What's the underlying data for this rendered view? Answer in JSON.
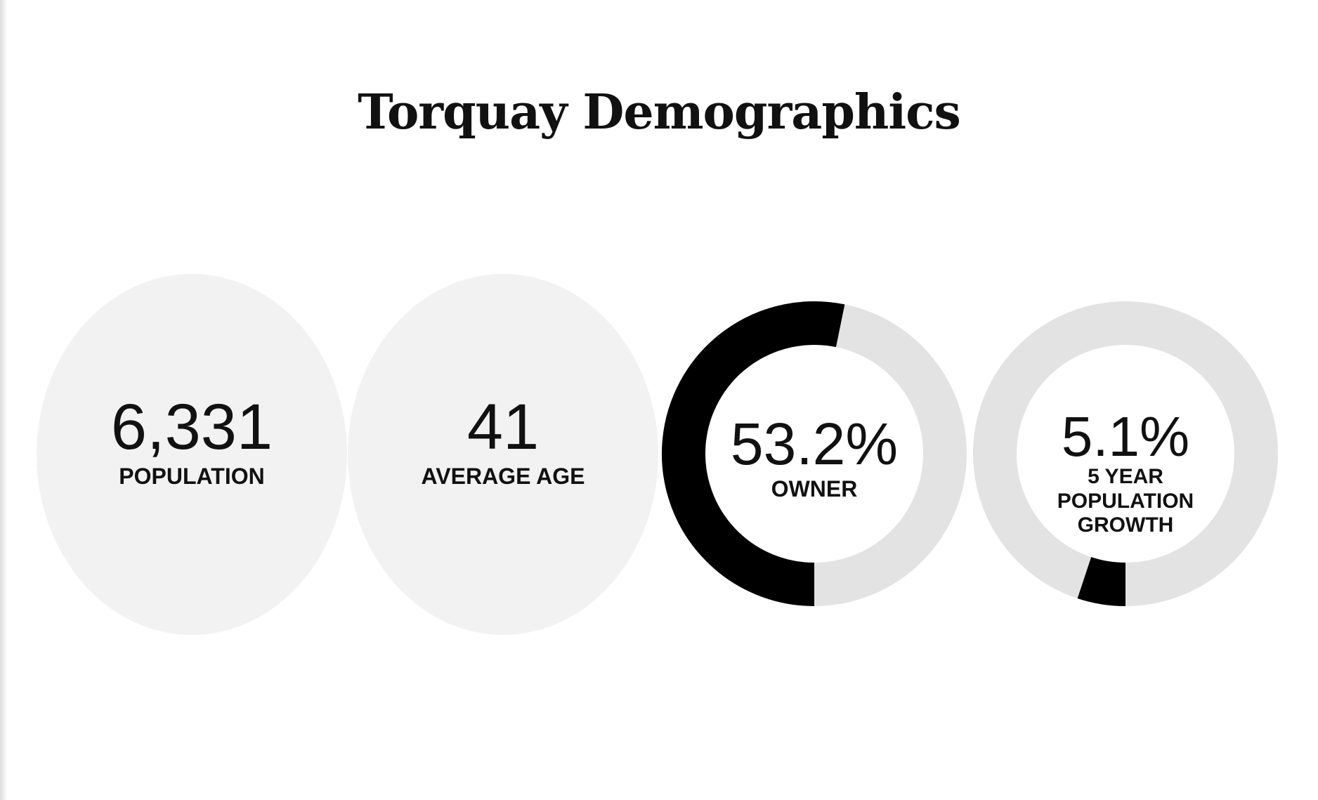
{
  "title": "Torquay Demographics",
  "colors": {
    "oval_fill": "#f2f2f2",
    "ring_track": "#e3e3e3",
    "ring_fill": "#000000",
    "text": "#111111"
  },
  "stats": [
    {
      "value": "6,331",
      "label": "POPULATION"
    },
    {
      "value": "41",
      "label": "AVERAGE AGE"
    }
  ],
  "donuts": [
    {
      "value": "53.2%",
      "label": "OWNER",
      "percent": 53.2
    },
    {
      "value": "5.1%",
      "label": "5 YEAR POPULATION GROWTH",
      "percent": 5.1
    }
  ]
}
